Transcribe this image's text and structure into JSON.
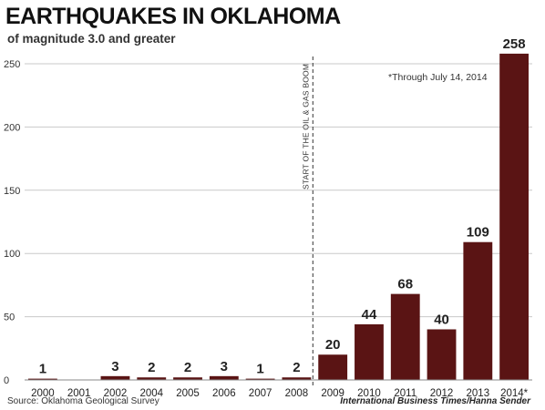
{
  "chart_data": {
    "type": "bar",
    "title": "EARTHQUAKES IN OKLAHOMA",
    "subtitle": "of magnitude 3.0 and greater",
    "categories": [
      "2000",
      "2001",
      "2002",
      "2004",
      "2005",
      "2006",
      "2007",
      "2008",
      "2009",
      "2010",
      "2011",
      "2012",
      "2013",
      "2014*"
    ],
    "values": [
      1,
      0,
      3,
      2,
      2,
      3,
      1,
      2,
      20,
      44,
      68,
      40,
      109,
      258
    ],
    "data_labels": [
      "1",
      "",
      "3",
      "2",
      "2",
      "3",
      "1",
      "2",
      "20",
      "44",
      "68",
      "40",
      "109",
      "258"
    ],
    "xlabel": "",
    "ylabel": "",
    "ylim": [
      0,
      260
    ],
    "yticks": [
      0,
      50,
      100,
      150,
      200,
      250
    ],
    "grid": true,
    "bar_color": "#5a1414",
    "event_marker": {
      "after_category": "2008",
      "label": "START OF THE OIL & GAS BOOM"
    },
    "annotation": "*Through July 14, 2014",
    "source": "Source: Oklahoma Geological Survey",
    "credit": "International Business Times/Hanna Sender"
  }
}
